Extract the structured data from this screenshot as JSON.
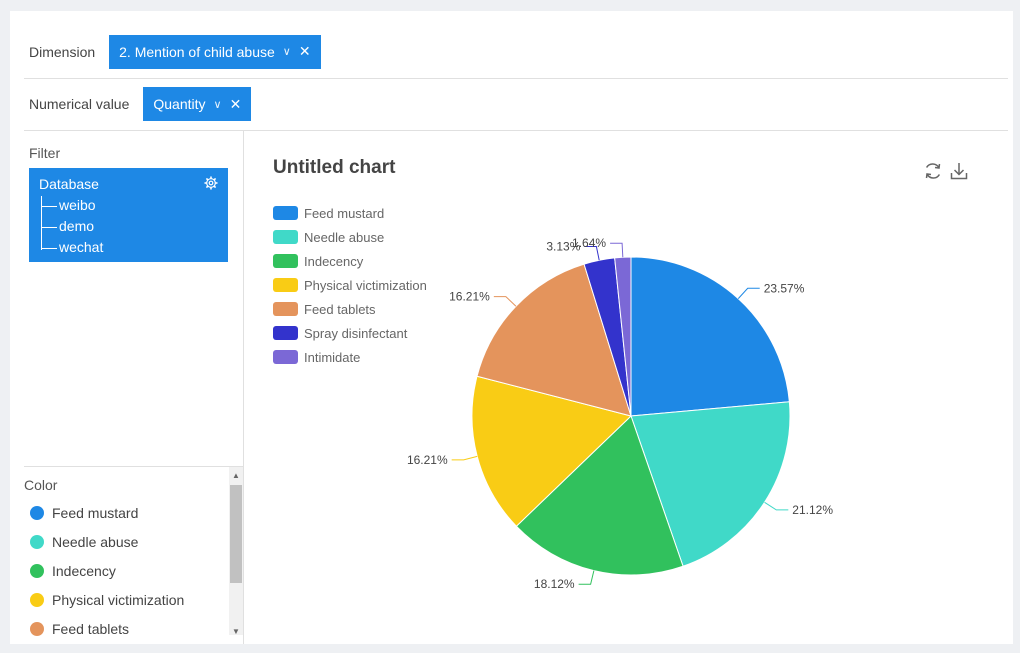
{
  "dimension": {
    "label": "Dimension",
    "chip": "2. Mention of child abuse"
  },
  "numerical": {
    "label": "Numerical value",
    "chip": "Quantity"
  },
  "filter": {
    "title": "Filter",
    "database": {
      "label": "Database",
      "children": [
        "weibo",
        "demo",
        "wechat"
      ]
    }
  },
  "color_panel": {
    "title": "Color",
    "items": [
      {
        "label": "Feed mustard",
        "color": "#1e88e5"
      },
      {
        "label": "Needle abuse",
        "color": "#40d9c8"
      },
      {
        "label": "Indecency",
        "color": "#31c15d"
      },
      {
        "label": "Physical victimization",
        "color": "#f9cc15"
      },
      {
        "label": "Feed tablets",
        "color": "#e4945c"
      }
    ]
  },
  "chart_title": "Untitled chart",
  "icons": {
    "refresh": "refresh-icon",
    "download": "download-icon",
    "settings": "gear-icon"
  },
  "chart_data": {
    "type": "pie",
    "title": "Untitled chart",
    "slices": [
      {
        "name": "Feed mustard",
        "value": 23.57,
        "label": "23.57%",
        "color": "#1e88e5"
      },
      {
        "name": "Needle abuse",
        "value": 21.12,
        "label": "21.12%",
        "color": "#40d9c8"
      },
      {
        "name": "Indecency",
        "value": 18.12,
        "label": "18.12%",
        "color": "#31c15d"
      },
      {
        "name": "Physical victimization",
        "value": 16.21,
        "label": "16.21%",
        "color": "#f9cc15"
      },
      {
        "name": "Feed tablets",
        "value": 16.21,
        "label": "16.21%",
        "color": "#e4945c"
      },
      {
        "name": "Spray disinfectant",
        "value": 3.13,
        "label": "3.13%",
        "color": "#3333cc"
      },
      {
        "name": "Intimidate",
        "value": 1.64,
        "label": "1.64%",
        "color": "#7b68d6"
      }
    ],
    "legend_position": "top-left"
  }
}
